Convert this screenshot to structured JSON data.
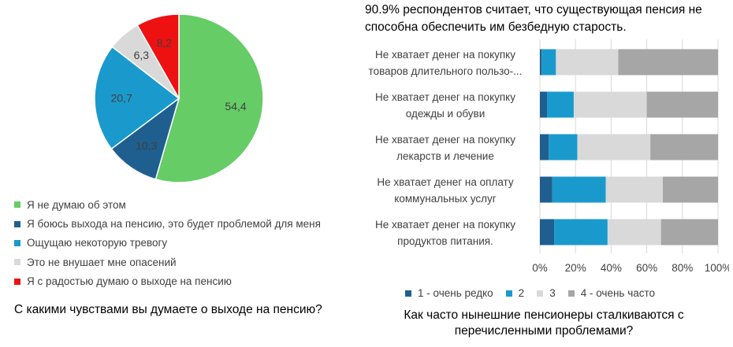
{
  "chart_data": [
    {
      "type": "pie",
      "labels": [
        "Я не думаю об этом",
        "Я боюсь выхода на пенсию, это будет проблемой для меня",
        "Ощущаю некоторую тревогу",
        "Это не внушает мне опасений",
        "Я с радостью думаю о выходе на пенсию"
      ],
      "values": [
        54.4,
        10.3,
        20.7,
        6.3,
        8.2
      ],
      "value_labels": [
        "54,4",
        "10,3",
        "20,7",
        "6,3",
        "8,2"
      ],
      "colors": [
        "#66cc66",
        "#1f5f8f",
        "#1a9acc",
        "#d9d9d9",
        "#ee1111"
      ],
      "legend_position": "bottom",
      "question": "С какими чувствами вы думаете о выходе на пенсию?"
    },
    {
      "type": "bar",
      "orientation": "horizontal",
      "stacked": "percent",
      "header": [
        "90.9% респондентов считает, что существующая пенсия не",
        "способна обеспечить им безбедную старость."
      ],
      "categories": [
        [
          "Не хватает денег на покупку",
          "товаров длительного пользо-..."
        ],
        [
          "Не хватает денег на покупку",
          "одежды и обуви"
        ],
        [
          "Не хватает денег на покупку",
          "лекарств и лечение"
        ],
        [
          "Не хватает денег на оплату",
          "коммунальных услуг"
        ],
        [
          "Не хватает денег на покупку",
          "продуктов питания."
        ]
      ],
      "series": [
        {
          "name": "1 - очень редко",
          "color": "#1f5f8f",
          "values": [
            1,
            4,
            5,
            7,
            8
          ]
        },
        {
          "name": "2",
          "color": "#1a9acc",
          "values": [
            8,
            15,
            16,
            30,
            30
          ]
        },
        {
          "name": "3",
          "color": "#d9d9d9",
          "values": [
            35,
            41,
            41,
            32,
            30
          ]
        },
        {
          "name": "4 - очень часто",
          "color": "#a6a6a6",
          "values": [
            56,
            40,
            38,
            31,
            32
          ]
        }
      ],
      "xlim": [
        0,
        100
      ],
      "x_ticks": [
        "0%",
        "20%",
        "40%",
        "60%",
        "80%",
        "100%"
      ],
      "grid": true,
      "legend_position": "bottom",
      "question": [
        "Как часто нынешние пенсионеры сталкиваются с",
        "перечисленными проблемами?"
      ]
    }
  ]
}
